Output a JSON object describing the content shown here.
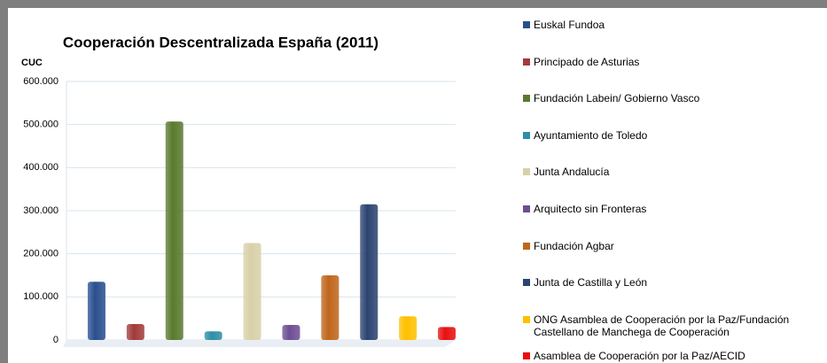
{
  "chart_data": {
    "type": "bar",
    "title": "Cooperación Descentralizada España (2011)",
    "y_label": "CUC",
    "ylim": [
      0,
      600000
    ],
    "yticks": [
      0,
      {
        "value": 100000,
        "label": "100.000"
      },
      {
        "value": 200000,
        "label": "200.000"
      },
      {
        "value": 300000,
        "label": "300.000"
      },
      {
        "value": 400000,
        "label": "400.000"
      },
      {
        "value": 500000,
        "label": "500.000"
      },
      {
        "value": 600000,
        "label": "600.000"
      }
    ],
    "grid": true,
    "legend": "right",
    "series": [
      {
        "name": "Euskal Fundoa",
        "color": "#2a4f8f",
        "values": [
          135000
        ]
      },
      {
        "name": "Principado de Asturias",
        "color": "#a23b3b",
        "values": [
          37000
        ]
      },
      {
        "name": "Fundación Labein/ Gobierno Vasco",
        "color": "#5a7a2e",
        "values": [
          507000
        ]
      },
      {
        "name": "Ayuntamiento de Toledo",
        "color": "#2e8fa6",
        "values": [
          20000
        ]
      },
      {
        "name": "Junta Andalucía",
        "color": "#d8d0a8",
        "values": [
          225000
        ]
      },
      {
        "name": "Arquitecto sin Fronteras",
        "color": "#6e4e94",
        "values": [
          35000
        ]
      },
      {
        "name": "Fundación Agbar",
        "color": "#c0661c",
        "values": [
          150000
        ]
      },
      {
        "name": "Junta de Castilla y León",
        "color": "#2b4470",
        "values": [
          315000
        ]
      },
      {
        "name": "ONG Asamblea de Cooperación por la Paz/Fundación Castellano de Manchega de Cooperación",
        "color": "#ffc000",
        "values": [
          55000
        ]
      },
      {
        "name": "Asamblea de Cooperación por la Paz/AECID",
        "color": "#e81010",
        "values": [
          30000
        ]
      }
    ]
  }
}
